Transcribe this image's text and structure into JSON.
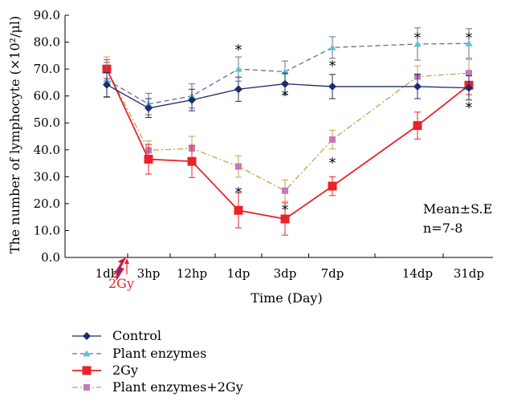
{
  "chart_data": {
    "type": "line",
    "categories": [
      "1db",
      "3hp",
      "12hp",
      "1dp",
      "3dp",
      "7dp",
      "14dp",
      "31dp"
    ],
    "xlabel": "Time (Day)",
    "ylabel": "The number of lymphocyte (×10²/μl)",
    "ylim": [
      0,
      90
    ],
    "yticks": [
      "0.0",
      "10.0",
      "20.0",
      "30.0",
      "40.0",
      "50.0",
      "60.0",
      "70.0",
      "80.0",
      "90.0"
    ],
    "ytick_values": [
      0,
      10,
      20,
      30,
      40,
      50,
      60,
      70,
      80,
      90
    ],
    "annotation_lines": [
      "Mean±S.E",
      "n=7-8"
    ],
    "irradiation_label": "2Gy",
    "star_symbol": "*",
    "series": [
      {
        "name": "Control",
        "color": "#1f2a6b",
        "marker": "diamond",
        "dash": "solid",
        "values": [
          64.2,
          55.5,
          58.5,
          62.5,
          64.5,
          63.5,
          63.5,
          63.0
        ],
        "errors": [
          4.5,
          3.5,
          4.0,
          4.5,
          4.0,
          4.5,
          4.5,
          4.5
        ]
      },
      {
        "name": "Plant enzymes",
        "color": "#6b6b8a",
        "marker": "triangle",
        "dash": "dashed",
        "values": [
          66.0,
          57.0,
          60.0,
          70.0,
          69.0,
          78.0,
          79.3,
          79.5
        ],
        "errors": [
          6.5,
          4.0,
          4.5,
          4.5,
          4.0,
          4.0,
          6.0,
          5.5
        ]
      },
      {
        "name": "2Gy",
        "color": "#e8232a",
        "marker": "square",
        "dash": "solid",
        "values": [
          70.0,
          36.5,
          35.7,
          17.5,
          14.3,
          26.5,
          49.0,
          64.0
        ],
        "errors": [
          3.5,
          5.5,
          6.0,
          6.5,
          6.0,
          3.5,
          5.0,
          3.5
        ]
      },
      {
        "name": "Plant enzymes+2Gy",
        "color": "#c8a046",
        "marker": "square",
        "dash": "dashdot",
        "values": [
          70.0,
          39.8,
          40.5,
          33.8,
          24.8,
          43.8,
          67.2,
          68.5
        ],
        "errors": [
          4.5,
          3.5,
          4.5,
          4.0,
          4.0,
          3.5,
          4.0,
          5.0
        ]
      }
    ],
    "significance": [
      {
        "category": 3,
        "value": 79.0
      },
      {
        "category": 3,
        "value": 26.0
      },
      {
        "category": 4,
        "value": 62.0
      },
      {
        "category": 4,
        "value": 19.5
      },
      {
        "category": 5,
        "value": 73.0
      },
      {
        "category": 5,
        "value": 37.0
      },
      {
        "category": 6,
        "value": 83.5
      },
      {
        "category": 7,
        "value": 83.5
      },
      {
        "category": 7,
        "value": 57.5
      }
    ]
  }
}
